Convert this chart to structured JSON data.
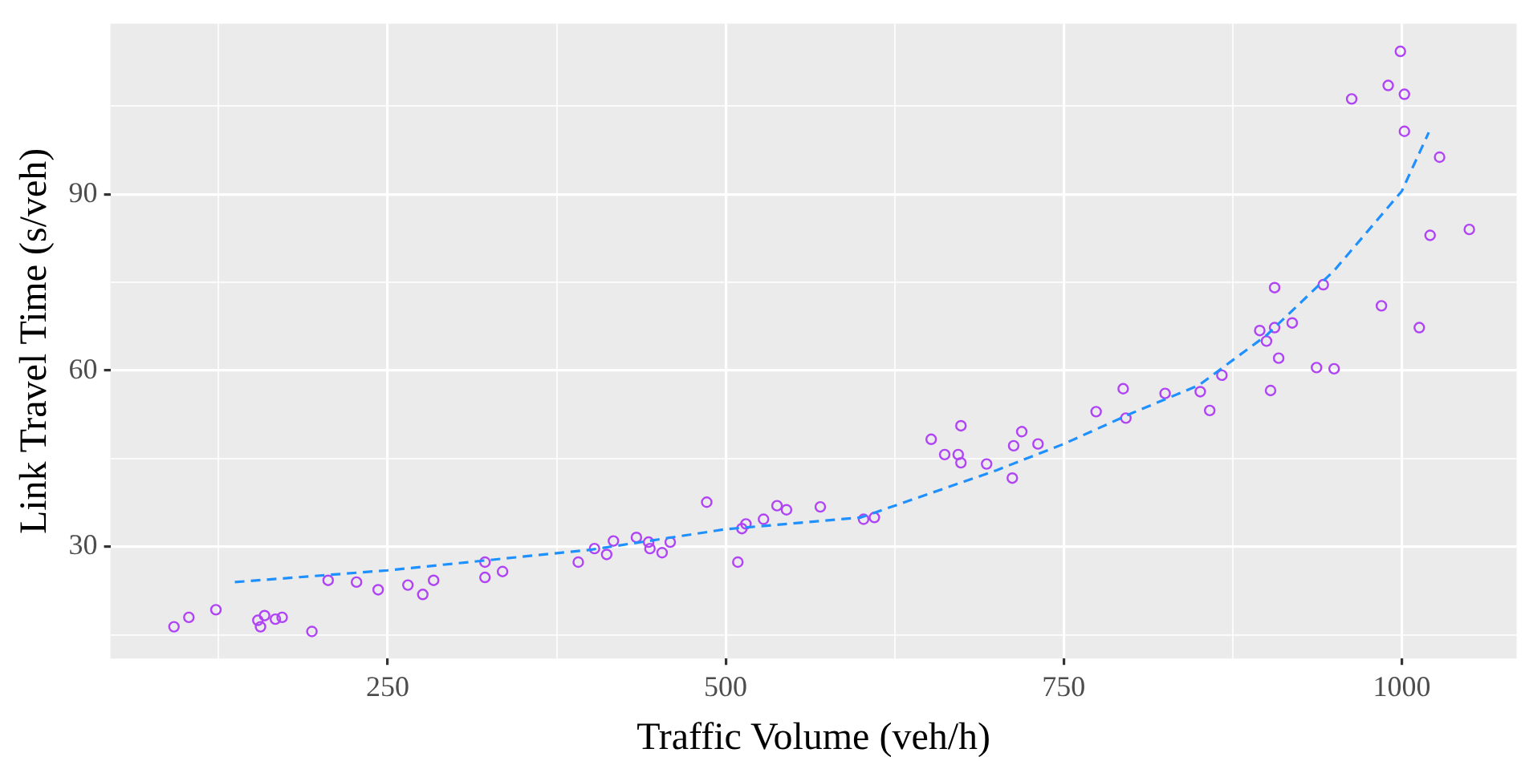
{
  "chart_data": {
    "type": "scatter",
    "xlabel": "Traffic Volume (veh/h)",
    "ylabel": "Link Travel Time (s/veh)",
    "xlim": [
      45,
      1085
    ],
    "ylim": [
      11,
      119
    ],
    "xticks": [
      {
        "value": 125,
        "label": null
      },
      250,
      {
        "value": 375,
        "label": null
      },
      500,
      {
        "value": 625,
        "label": null
      },
      750,
      {
        "value": 875,
        "label": null
      },
      1000
    ],
    "yticks": [
      {
        "value": 15,
        "label": null
      },
      30,
      {
        "value": 45,
        "label": null
      },
      60,
      {
        "value": 75,
        "label": null
      },
      90,
      {
        "value": 105,
        "label": null
      }
    ],
    "grid": true,
    "legend": false,
    "marker": "circle",
    "series": [
      {
        "color": "#b044f5",
        "x": [
          92,
          103,
          123,
          154,
          156,
          159,
          167,
          172,
          194,
          206,
          227,
          243,
          265,
          276,
          284,
          322,
          322,
          335,
          391,
          403,
          412,
          417,
          434,
          443,
          444,
          453,
          459,
          486,
          509,
          512,
          515,
          528,
          538,
          545,
          570,
          602,
          610,
          652,
          662,
          672,
          674,
          674,
          693,
          712,
          713,
          719,
          731,
          774,
          794,
          796,
          825,
          851,
          858,
          867,
          903,
          895,
          900,
          906,
          909,
          906,
          919,
          937,
          950,
          942,
          985,
          1013,
          1021,
          1050,
          1028,
          1002,
          963,
          990,
          1002,
          999
        ],
        "values": [
          16.4,
          18,
          19.3,
          17.5,
          16.4,
          18.3,
          17.7,
          18,
          15.6,
          24.3,
          24,
          22.7,
          23.5,
          21.9,
          24.3,
          24.8,
          27.4,
          25.8,
          27.4,
          29.7,
          28.7,
          31,
          31.6,
          30.8,
          29.7,
          29,
          30.8,
          37.6,
          27.4,
          33.1,
          33.9,
          34.7,
          37,
          36.3,
          36.8,
          34.7,
          35,
          48.3,
          45.7,
          45.7,
          44.3,
          50.6,
          44.1,
          41.7,
          47.2,
          49.6,
          47.5,
          53,
          56.9,
          51.9,
          56.1,
          56.4,
          53.2,
          59.2,
          56.6,
          66.8,
          65,
          67.3,
          62.1,
          74.1,
          68.1,
          60.5,
          60.3,
          74.6,
          71,
          67.3,
          83,
          84,
          96.3,
          100.7,
          106.2,
          108.5,
          107,
          114.3
        ]
      },
      {
        "type": "line",
        "color": "#1e90ff",
        "line_style": "dashed",
        "marker": "none",
        "x": [
          137,
          250,
          400,
          500,
          600,
          700,
          750,
          800,
          850,
          900,
          950,
          1000,
          1020
        ],
        "values": [
          24,
          26,
          29.5,
          33,
          35,
          43,
          47.5,
          52.7,
          57.5,
          66,
          77,
          90.5,
          100.5
        ]
      }
    ]
  }
}
